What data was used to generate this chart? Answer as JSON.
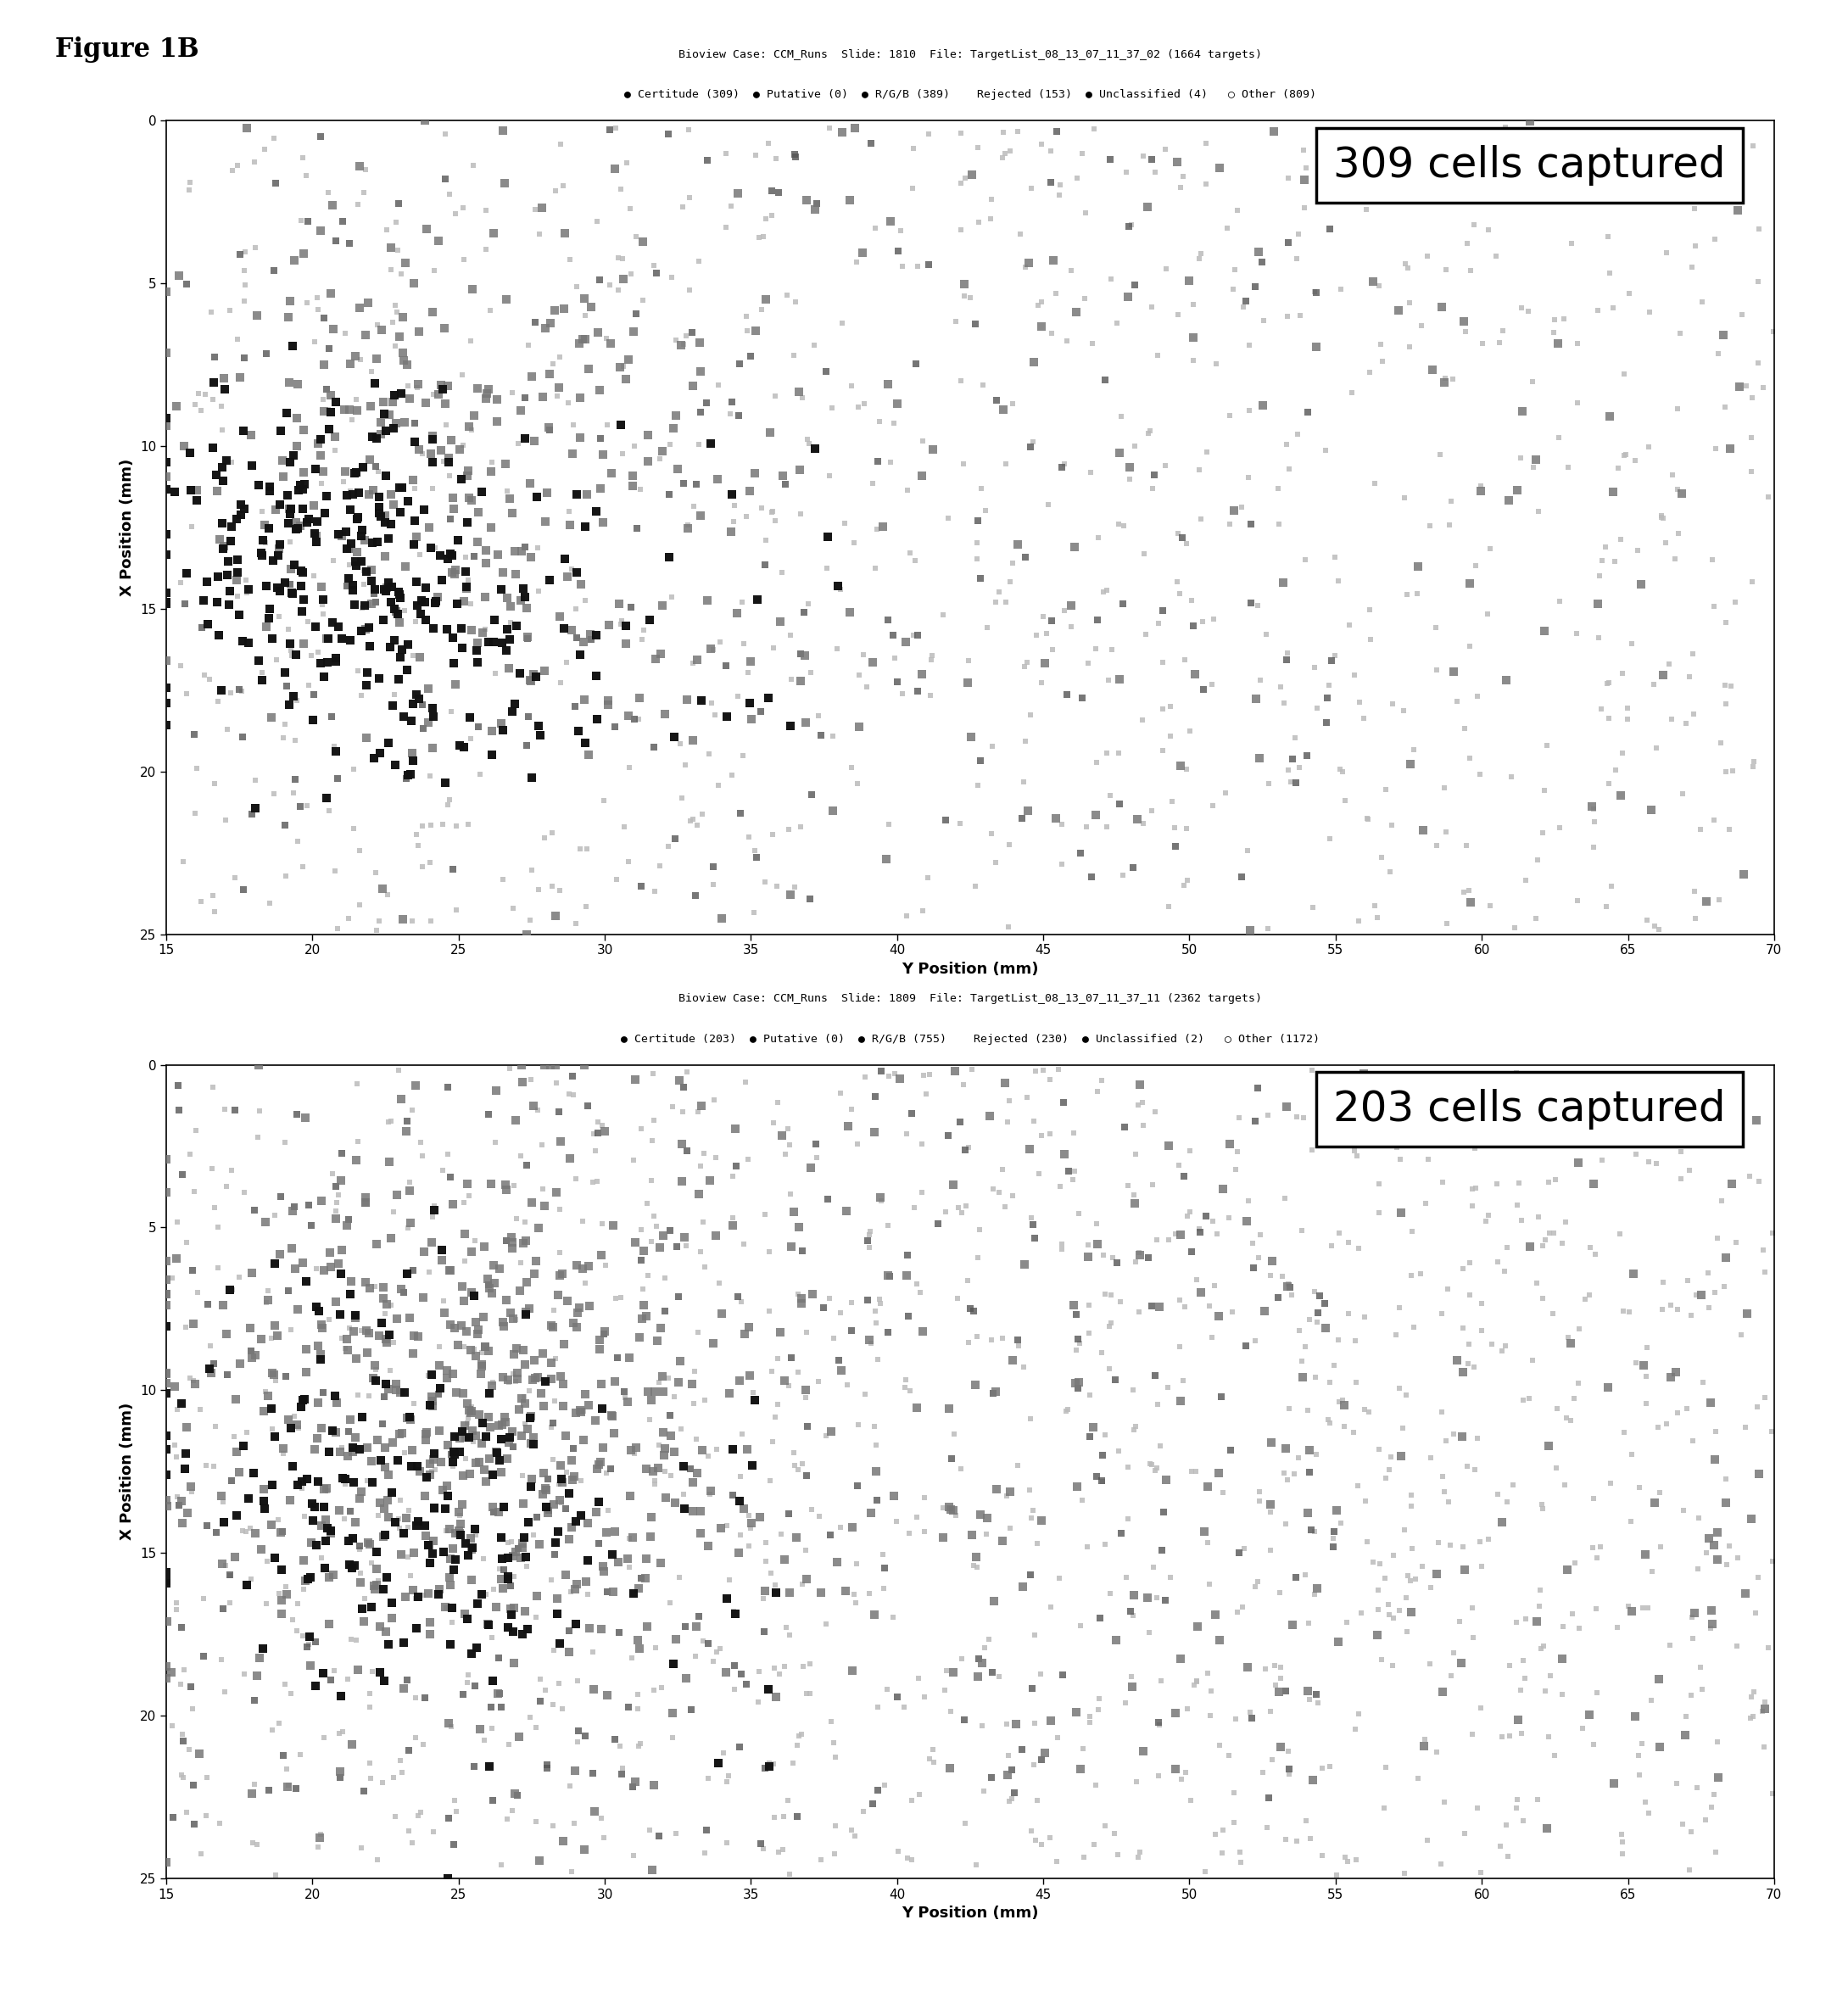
{
  "figure_title": "Figure 1B",
  "plot1": {
    "title_line1": "Bioview Case: CCM_Runs  Slide: 1810  File: TargetList_08_13_07_11_37_02 (1664 targets)",
    "title_line2": "Certitude (309)  Putative (0)  R/G/B (389)    Rejected (153)  Unclassified (4)   Other (809)",
    "annotation": "309 cells captured",
    "xlim": [
      15,
      70
    ],
    "ylim": [
      25,
      0
    ],
    "xlabel": "Y Position (mm)",
    "ylabel": "X Position (mm)",
    "xticks": [
      15,
      20,
      25,
      30,
      35,
      40,
      45,
      50,
      55,
      60,
      65,
      70
    ],
    "yticks": [
      0,
      5,
      10,
      15,
      20,
      25
    ],
    "certitude_count": 309,
    "putative_count": 0,
    "rgb_count": 389,
    "rejected_count": 153,
    "unclassified_count": 4,
    "other_count": 809
  },
  "plot2": {
    "title_line1": "Bioview Case: CCM_Runs  Slide: 1809  File: TargetList_08_13_07_11_37_11 (2362 targets)",
    "title_line2": "Certitude (203)  Putative (0)  R/G/B (755)    Rejected (230)  Unclassified (2)   Other (1172)",
    "annotation": "203 cells captured",
    "xlim": [
      15,
      70
    ],
    "ylim": [
      25,
      0
    ],
    "xlabel": "Y Position (mm)",
    "ylabel": "X Position (mm)",
    "xticks": [
      15,
      20,
      25,
      30,
      35,
      40,
      45,
      50,
      55,
      60,
      65,
      70
    ],
    "yticks": [
      0,
      5,
      10,
      15,
      20,
      25
    ],
    "certitude_count": 203,
    "putative_count": 0,
    "rgb_count": 755,
    "rejected_count": 230,
    "unclassified_count": 2,
    "other_count": 1172
  },
  "colors": {
    "certitude": "#111111",
    "putative": "#222222",
    "rgb": "#777777",
    "rejected": "#555555",
    "unclassified": "#666666",
    "other": "#bbbbbb",
    "background": "#ffffff"
  },
  "marker_size_certitude": 55,
  "marker_size_rgb": 45,
  "marker_size_rejected": 35,
  "marker_size_other": 20,
  "marker_size_unclassified": 40,
  "figure_label_fontsize": 22,
  "title_fontsize": 9.5,
  "annotation_fontsize": 36,
  "axis_label_fontsize": 13,
  "tick_fontsize": 11
}
